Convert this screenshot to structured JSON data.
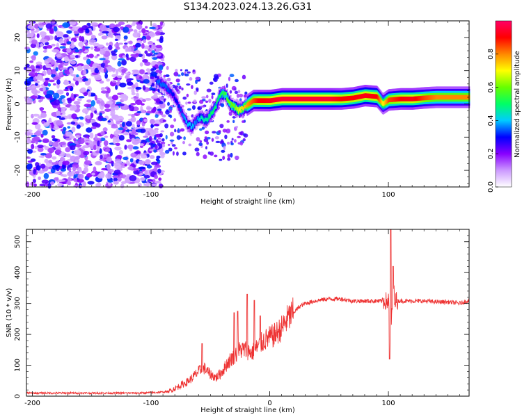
{
  "title": "S134.2023.024.13.26.G31",
  "chart_data": [
    {
      "type": "heatmap",
      "xlabel": "Height of straight line (km)",
      "ylabel": "Frequency (Hz)",
      "xlim": [
        -205,
        168
      ],
      "ylim": [
        -25,
        25
      ],
      "x_ticks": [
        -200,
        -100,
        0,
        100
      ],
      "y_ticks": [
        -20,
        -10,
        0,
        10,
        20
      ],
      "colorbar": {
        "label": "Normalized spectral amplitude",
        "range": [
          0,
          1
        ],
        "ticks": [
          0.0,
          0.2,
          0.4,
          0.6,
          0.8
        ],
        "colors": [
          "#ffffff",
          "#cc99ff",
          "#8800ff",
          "#0000ff",
          "#00ccff",
          "#00ff66",
          "#66ff00",
          "#ffff00",
          "#ff8800",
          "#ff0000",
          "#ff0066"
        ]
      },
      "noise_region": {
        "x": [
          -205,
          -95
        ],
        "y": [
          -25,
          25
        ]
      },
      "ridge": {
        "x": [
          -95,
          -88,
          -82,
          -78,
          -74,
          -70,
          -66,
          -62,
          -58,
          -54,
          -50,
          -46,
          -42,
          -38,
          -34,
          -30,
          -26,
          -22,
          -18,
          -14,
          -10,
          -6,
          0,
          10,
          20,
          30,
          40,
          50,
          60,
          70,
          80,
          90,
          95,
          100,
          110,
          120,
          130,
          140,
          150,
          160,
          168
        ],
        "freq": [
          7,
          5,
          3,
          0,
          -3,
          -6,
          -7,
          -5,
          -4,
          -5,
          -3,
          -1,
          3,
          3,
          0,
          -1,
          -2,
          -1,
          0,
          1,
          1,
          1,
          1,
          1.5,
          1.5,
          1.5,
          1.5,
          1.5,
          1.5,
          1.8,
          2.5,
          2.2,
          0,
          1.2,
          1.5,
          1.5,
          1.8,
          2,
          2,
          2,
          2
        ],
        "amplitude": [
          0.35,
          0.35,
          0.3,
          0.3,
          0.35,
          0.4,
          0.4,
          0.35,
          0.45,
          0.45,
          0.5,
          0.5,
          0.5,
          0.55,
          0.6,
          0.6,
          0.7,
          0.75,
          0.8,
          0.85,
          0.9,
          0.9,
          0.92,
          0.95,
          0.95,
          0.95,
          0.95,
          0.95,
          0.9,
          0.9,
          0.92,
          0.9,
          0.7,
          0.85,
          0.9,
          0.92,
          0.85,
          0.8,
          0.8,
          0.8,
          0.8
        ]
      }
    },
    {
      "type": "line",
      "xlabel": "Height of straight line (km)",
      "ylabel": "SNR (10 * v/v)",
      "xlim": [
        -205,
        168
      ],
      "ylim": [
        0,
        540
      ],
      "x_ticks": [
        -200,
        -100,
        0,
        100
      ],
      "y_ticks": [
        0,
        100,
        200,
        300,
        400,
        500
      ],
      "color": "#ee3333",
      "x": [
        -205,
        -190,
        -170,
        -150,
        -130,
        -110,
        -95,
        -85,
        -80,
        -75,
        -70,
        -65,
        -60,
        -55,
        -50,
        -45,
        -40,
        -35,
        -30,
        -25,
        -20,
        -15,
        -10,
        -5,
        0,
        5,
        10,
        15,
        20,
        25,
        30,
        40,
        50,
        60,
        70,
        80,
        90,
        95,
        100,
        102,
        104,
        106,
        110,
        120,
        130,
        140,
        150,
        160,
        168
      ],
      "y": [
        10,
        10,
        10,
        10,
        10,
        10,
        12,
        15,
        25,
        35,
        45,
        60,
        80,
        90,
        70,
        60,
        80,
        110,
        130,
        150,
        150,
        140,
        160,
        180,
        190,
        200,
        220,
        250,
        270,
        290,
        300,
        310,
        315,
        315,
        308,
        308,
        308,
        308,
        308,
        200,
        350,
        310,
        308,
        308,
        308,
        305,
        305,
        300,
        310
      ],
      "spikes": [
        {
          "x": -57,
          "y": 170
        },
        {
          "x": -30,
          "y": 270
        },
        {
          "x": -27,
          "y": 275
        },
        {
          "x": -19,
          "y": 330
        },
        {
          "x": -13,
          "y": 310
        },
        {
          "x": -8,
          "y": 260
        },
        {
          "x": 102,
          "y": 540
        },
        {
          "x": 101,
          "y": 120
        },
        {
          "x": 104,
          "y": 420
        }
      ]
    }
  ]
}
